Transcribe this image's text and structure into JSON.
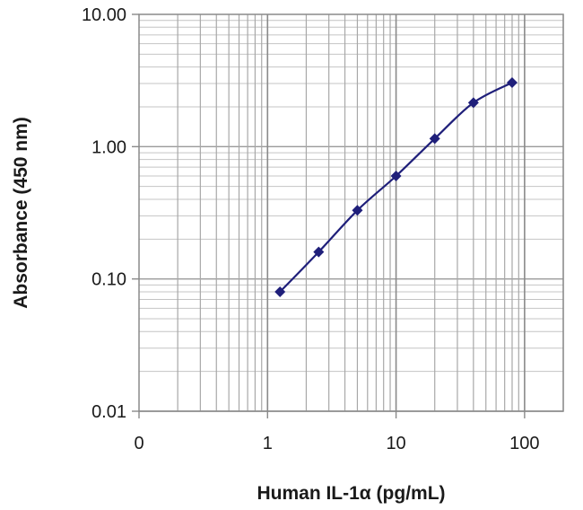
{
  "chart_data": {
    "type": "line",
    "title": "",
    "xlabel": "Human IL-1α (pg/mL)",
    "ylabel": "Absorbance (450 nm)",
    "xscale": "log",
    "yscale": "log",
    "xlim": [
      0.1,
      200
    ],
    "ylim": [
      0.01,
      10
    ],
    "x_tick_labels": [
      "0",
      "1",
      "10",
      "100"
    ],
    "x_tick_values": [
      0.1,
      1,
      10,
      100
    ],
    "y_tick_labels": [
      "0.01",
      "0.10",
      "1.00",
      "10.00"
    ],
    "y_tick_values": [
      0.01,
      0.1,
      1,
      10
    ],
    "grid": true,
    "legend": "none",
    "series": [
      {
        "x": [
          1.25,
          2.5,
          5,
          10,
          20,
          40,
          80
        ],
        "y": [
          0.08,
          0.16,
          0.33,
          0.6,
          1.15,
          2.15,
          3.05
        ],
        "color": "#1f1f7a"
      }
    ]
  }
}
